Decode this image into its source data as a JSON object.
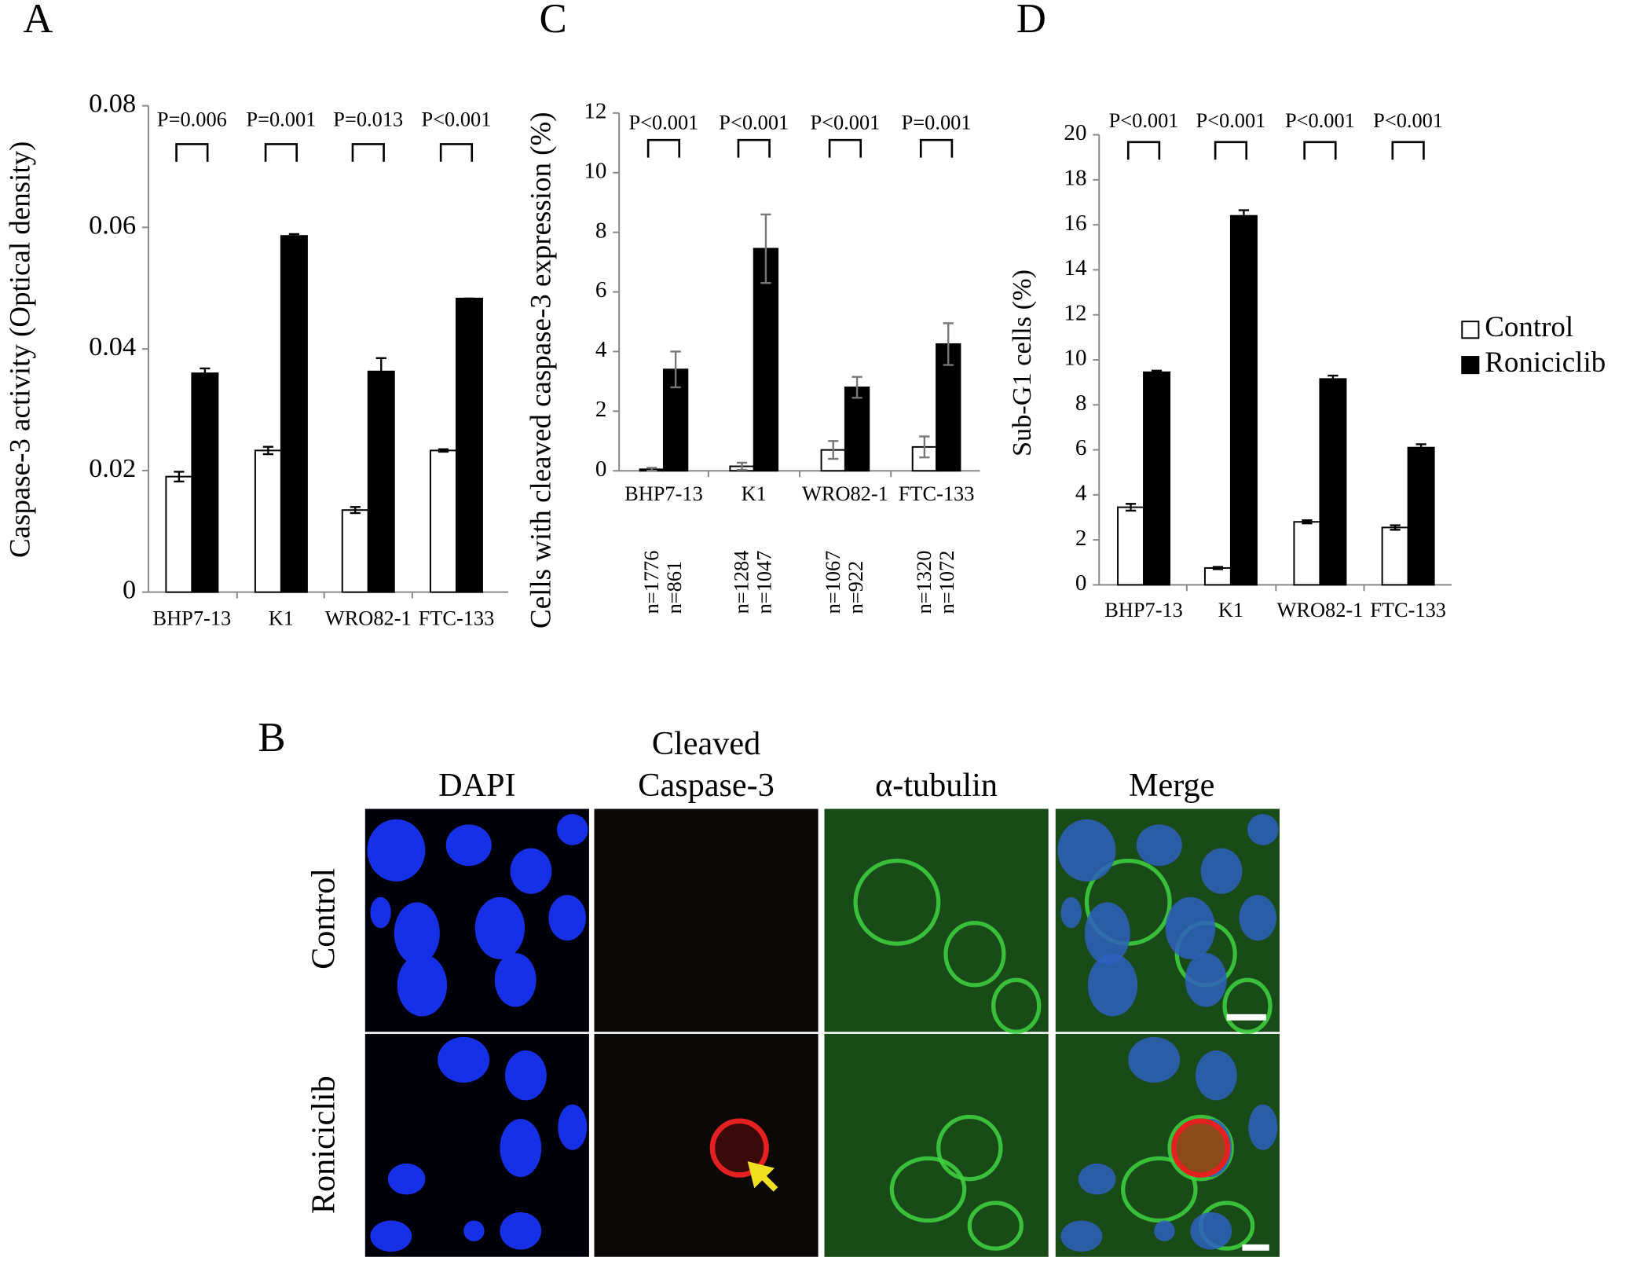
{
  "chart_data": [
    {
      "type": "bar",
      "panel": "A",
      "ylabel": "Caspase-3 activity (Optical density)",
      "categories": [
        "BHP7-13",
        "K1",
        "WRO82-1",
        "FTC-133"
      ],
      "series": [
        {
          "color": "#ffffff",
          "values": [
            0.019,
            0.0233,
            0.0135,
            0.0233
          ],
          "errors": [
            0.0008,
            0.0006,
            0.0005,
            0.0002
          ]
        },
        {
          "color": "#000000",
          "values": [
            0.036,
            0.0586,
            0.0363,
            0.0483
          ],
          "errors": [
            0.0008,
            0.0003,
            0.0022,
            0
          ]
        }
      ],
      "ylim": [
        0,
        0.08
      ],
      "yticks": [
        0,
        0.02,
        0.04,
        0.06,
        0.08
      ],
      "annotations": [
        "P=0.006",
        "P=0.001",
        "P=0.013",
        "P<0.001"
      ]
    },
    {
      "type": "bar",
      "panel": "C",
      "ylabel": "Cells with cleaved caspase-3 expression (%)",
      "categories": [
        "BHP7-13",
        "K1",
        "WRO82-1",
        "FTC-133"
      ],
      "series": [
        {
          "color": "#ffffff",
          "values": [
            0.05,
            0.15,
            0.7,
            0.8
          ],
          "errors": [
            0.05,
            0.12,
            0.3,
            0.35
          ]
        },
        {
          "color": "#000000",
          "values": [
            3.4,
            7.45,
            2.8,
            4.25
          ],
          "errors": [
            0.6,
            1.15,
            0.35,
            0.7
          ]
        }
      ],
      "ylim": [
        0,
        12
      ],
      "yticks": [
        0,
        2,
        4,
        6,
        8,
        10,
        12
      ],
      "annotations": [
        "P<0.001",
        "P<0.001",
        "P<0.001",
        "P=0.001"
      ],
      "n_labels": [
        [
          "n=1776",
          "n=861"
        ],
        [
          "n=1284",
          "n=1047"
        ],
        [
          "n=1067",
          "n=922"
        ],
        [
          "n=1320",
          "n=1072"
        ]
      ]
    },
    {
      "type": "bar",
      "panel": "D",
      "ylabel": "Sub-G1 cells (%)",
      "categories": [
        "BHP7-13",
        "K1",
        "WRO82-1",
        "FTC-133"
      ],
      "series": [
        {
          "name": "Control",
          "color": "#ffffff",
          "values": [
            3.45,
            0.75,
            2.8,
            2.55
          ],
          "errors": [
            0.15,
            0.05,
            0.07,
            0.1
          ]
        },
        {
          "name": "Roniciclib",
          "color": "#000000",
          "values": [
            9.45,
            16.4,
            9.15,
            6.1
          ],
          "errors": [
            0.07,
            0.25,
            0.15,
            0.15
          ]
        }
      ],
      "ylim": [
        0,
        20
      ],
      "yticks": [
        0,
        2,
        4,
        6,
        8,
        10,
        12,
        14,
        16,
        18,
        20
      ],
      "annotations": [
        "P<0.001",
        "P<0.001",
        "P<0.001",
        "P<0.001"
      ],
      "legend": "right"
    }
  ],
  "panel_b": {
    "label": "B",
    "columns": [
      [
        "DAPI"
      ],
      [
        "Cleaved",
        "Caspase-3"
      ],
      [
        "α-tubulin"
      ],
      [
        "Merge"
      ]
    ],
    "rows": [
      "Control",
      "Roniciclib"
    ]
  }
}
